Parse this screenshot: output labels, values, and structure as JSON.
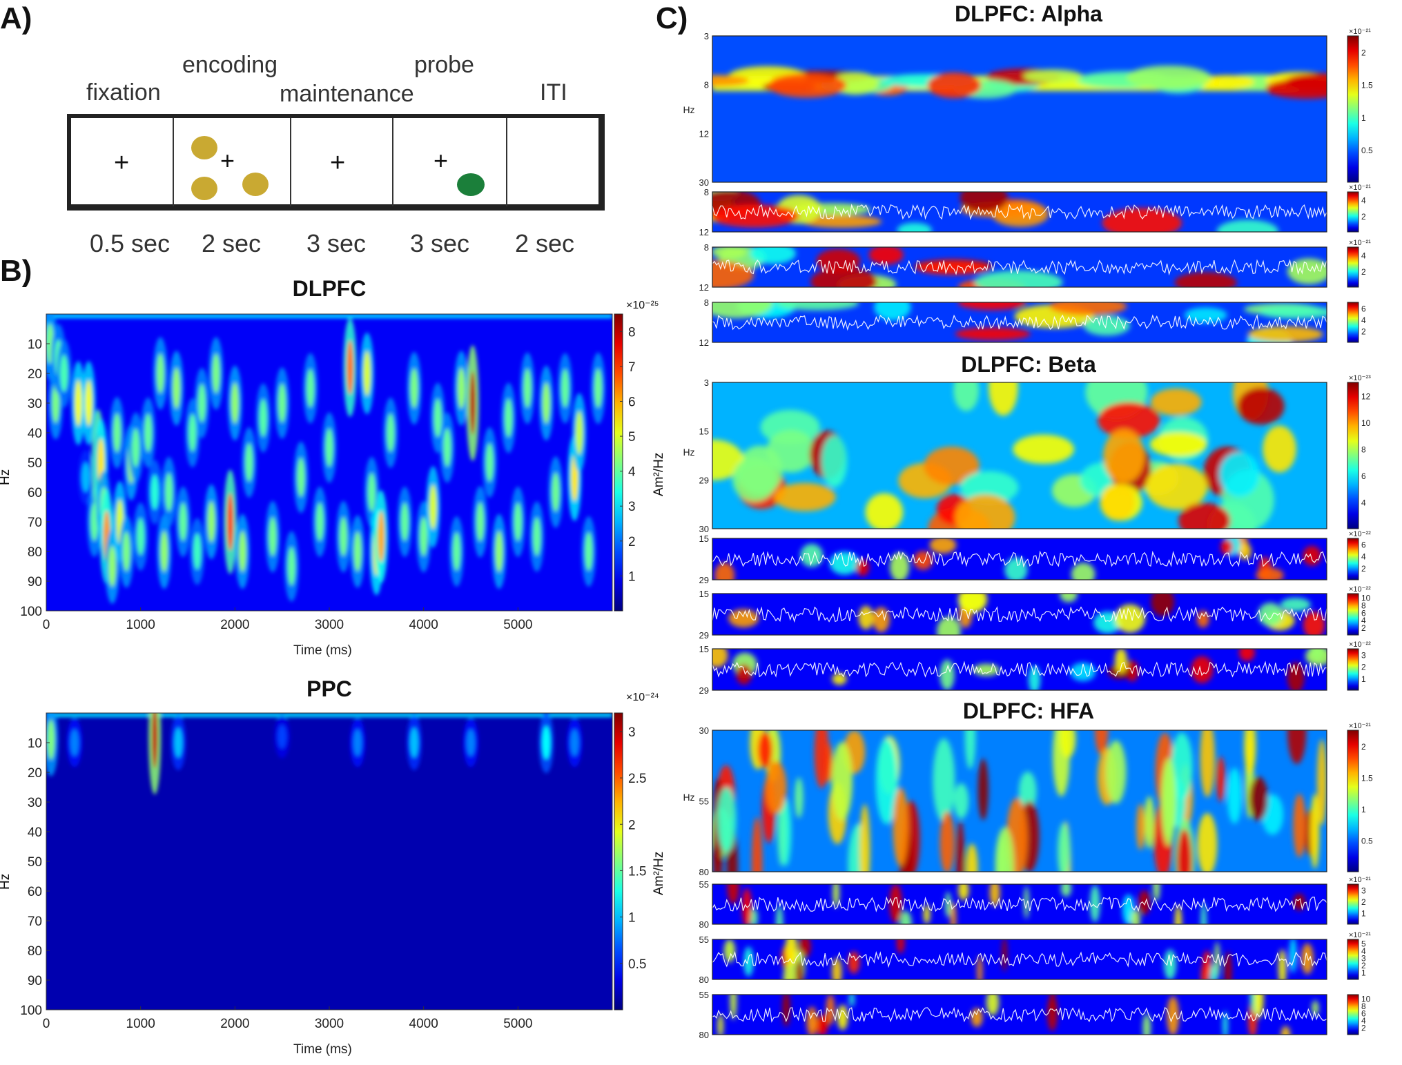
{
  "panel_labels": {
    "a": "A)",
    "b": "B)",
    "c": "C)"
  },
  "task": {
    "phases": [
      {
        "name": "fixation",
        "duration": "0.5 sec",
        "stimulus": "cross"
      },
      {
        "name": "encoding",
        "duration": "2 sec",
        "stimulus": "cross-three-yellow-dots"
      },
      {
        "name": "maintenance",
        "duration": "3 sec",
        "stimulus": "cross"
      },
      {
        "name": "probe",
        "duration": "3 sec",
        "stimulus": "cross-green-dot"
      },
      {
        "name": "ITI",
        "duration": "2 sec",
        "stimulus": "blank"
      }
    ],
    "cross": "+",
    "colors": {
      "memory_dot": "#c9a932",
      "probe_dot": "#1b7f3a"
    }
  },
  "colormap": [
    "#00007f",
    "#0000ff",
    "#007fff",
    "#00ffff",
    "#7fff7f",
    "#ffff00",
    "#ff7f00",
    "#ff0000",
    "#7f0000"
  ],
  "chart_data": [
    {
      "type": "heatmap",
      "title": "DLPFC",
      "xlabel": "Time (ms)",
      "ylabel": "Hz",
      "xlim": [
        0,
        6000
      ],
      "xticks": [
        "0",
        "1000",
        "2000",
        "3000",
        "4000",
        "5000"
      ],
      "ylim": [
        0,
        100
      ],
      "yticks": [
        "10",
        "20",
        "30",
        "40",
        "50",
        "60",
        "70",
        "80",
        "90",
        "100"
      ],
      "colorbar": {
        "label": "Am²/Hz",
        "exponent": "×10⁻²⁵",
        "ticks": [
          "1",
          "2",
          "3",
          "4",
          "5",
          "6",
          "7",
          "8"
        ],
        "range": [
          0,
          8.5
        ]
      },
      "bursts": [
        [
          30,
          8,
          3.4
        ],
        [
          40,
          10,
          4.2
        ],
        [
          100,
          30,
          4.2
        ],
        [
          130,
          15,
          3.9
        ],
        [
          190,
          20,
          3.8
        ],
        [
          340,
          30,
          5.2
        ],
        [
          420,
          55,
          2.6
        ],
        [
          450,
          30,
          5.2
        ],
        [
          510,
          70,
          4.0
        ],
        [
          550,
          50,
          7.2
        ],
        [
          580,
          50,
          5.5
        ],
        [
          610,
          65,
          4.2
        ],
        [
          640,
          75,
          6.2
        ],
        [
          700,
          85,
          4.4
        ],
        [
          750,
          40,
          4.1
        ],
        [
          780,
          70,
          5.0
        ],
        [
          850,
          80,
          4.2
        ],
        [
          900,
          50,
          4.5
        ],
        [
          950,
          45,
          4.0
        ],
        [
          1000,
          75,
          3.8
        ],
        [
          1080,
          40,
          4.0
        ],
        [
          1150,
          60,
          3.5
        ],
        [
          1210,
          20,
          4.2
        ],
        [
          1250,
          80,
          4.4
        ],
        [
          1300,
          60,
          4.0
        ],
        [
          1380,
          25,
          4.4
        ],
        [
          1450,
          70,
          4.0
        ],
        [
          1550,
          40,
          3.9
        ],
        [
          1600,
          80,
          3.7
        ],
        [
          1650,
          30,
          4.0
        ],
        [
          1750,
          70,
          4.4
        ],
        [
          1800,
          20,
          4.2
        ],
        [
          1950,
          70,
          7.0
        ],
        [
          2000,
          30,
          4.4
        ],
        [
          2080,
          80,
          4.4
        ],
        [
          2150,
          50,
          4.0
        ],
        [
          2300,
          35,
          3.9
        ],
        [
          2400,
          75,
          4.1
        ],
        [
          2500,
          30,
          4.1
        ],
        [
          2600,
          85,
          4.0
        ],
        [
          2700,
          55,
          4.1
        ],
        [
          2800,
          25,
          4.0
        ],
        [
          2900,
          70,
          4.0
        ],
        [
          3000,
          45,
          4.0
        ],
        [
          3150,
          75,
          4.1
        ],
        [
          3220,
          18,
          6.5
        ],
        [
          3300,
          80,
          4.2
        ],
        [
          3400,
          20,
          5.0
        ],
        [
          3450,
          60,
          4.0
        ],
        [
          3500,
          80,
          5.5
        ],
        [
          3550,
          75,
          6.0
        ],
        [
          3650,
          40,
          4.0
        ],
        [
          3800,
          70,
          4.0
        ],
        [
          3900,
          25,
          4.2
        ],
        [
          4000,
          75,
          4.1
        ],
        [
          4100,
          65,
          5.0
        ],
        [
          4150,
          35,
          4.0
        ],
        [
          4250,
          45,
          4.0
        ],
        [
          4350,
          80,
          4.0
        ],
        [
          4400,
          25,
          4.4
        ],
        [
          4520,
          30,
          8.0
        ],
        [
          4600,
          70,
          4.1
        ],
        [
          4700,
          50,
          4.0
        ],
        [
          4800,
          80,
          4.4
        ],
        [
          4900,
          35,
          4.0
        ],
        [
          5000,
          70,
          4.0
        ],
        [
          5100,
          25,
          4.1
        ],
        [
          5200,
          75,
          4.0
        ],
        [
          5300,
          30,
          4.4
        ],
        [
          5400,
          60,
          4.1
        ],
        [
          5500,
          25,
          4.0
        ],
        [
          5600,
          55,
          5.5
        ],
        [
          5650,
          40,
          4.8
        ],
        [
          5750,
          80,
          4.0
        ],
        [
          5850,
          25,
          4.1
        ]
      ],
      "baseline": 1.0
    },
    {
      "type": "heatmap",
      "title": "PPC",
      "xlabel": "Time (ms)",
      "ylabel": "Hz",
      "xlim": [
        0,
        6000
      ],
      "xticks": [
        "0",
        "1000",
        "2000",
        "3000",
        "4000",
        "5000"
      ],
      "ylim": [
        0,
        100
      ],
      "yticks": [
        "10",
        "20",
        "30",
        "40",
        "50",
        "60",
        "70",
        "80",
        "90",
        "100"
      ],
      "colorbar": {
        "label": "Am²/Hz",
        "exponent": "×10⁻²⁴",
        "ticks": [
          "0.5",
          "1",
          "1.5",
          "2",
          "2.5",
          "3"
        ],
        "range": [
          0,
          3.2
        ]
      },
      "bursts": [
        [
          50,
          9,
          1.6
        ],
        [
          300,
          10,
          0.8
        ],
        [
          1150,
          8,
          3.0
        ],
        [
          1400,
          10,
          1.0
        ],
        [
          2500,
          8,
          0.6
        ],
        [
          3300,
          10,
          0.8
        ],
        [
          3900,
          10,
          1.0
        ],
        [
          4500,
          10,
          0.8
        ],
        [
          5300,
          10,
          1.2
        ],
        [
          5600,
          10,
          0.8
        ]
      ],
      "baseline": 0.15
    },
    {
      "type": "heatmap",
      "title": "DLPFC: Alpha",
      "ylabel": "Hz",
      "yticks": [
        "3",
        "8",
        "12",
        "30"
      ],
      "colorbar": {
        "label": "Am²/Hz",
        "exponent": "×10⁻²¹",
        "ticks": [
          "0.5",
          "1",
          "1.5",
          "2"
        ]
      },
      "band_center_hz": 12,
      "trials": [
        {
          "yticks": [
            "8",
            "12"
          ],
          "colorbar_ticks": [
            "2",
            "4"
          ],
          "exponent": "×10⁻²¹"
        },
        {
          "yticks": [
            "8",
            "12"
          ],
          "colorbar_ticks": [
            "2",
            "4"
          ],
          "exponent": "×10⁻²¹"
        },
        {
          "yticks": [
            "8",
            "12"
          ],
          "colorbar_ticks": [
            "2",
            "4",
            "6"
          ],
          "exponent": ""
        }
      ]
    },
    {
      "type": "heatmap",
      "title": "DLPFC: Beta",
      "ylabel": "Hz",
      "yticks": [
        "3",
        "15",
        "29",
        "30"
      ],
      "colorbar": {
        "label": "Am²/Hz",
        "exponent": "×10⁻²³",
        "ticks": [
          "4",
          "6",
          "8",
          "10",
          "12"
        ]
      },
      "trials": [
        {
          "yticks": [
            "15",
            "29"
          ],
          "colorbar_ticks": [
            "2",
            "4",
            "6"
          ],
          "exponent": "×10⁻²²"
        },
        {
          "yticks": [
            "15",
            "29"
          ],
          "colorbar_ticks": [
            "2",
            "4",
            "6",
            "8",
            "10"
          ],
          "exponent": "×10⁻²²"
        },
        {
          "yticks": [
            "15",
            "29"
          ],
          "colorbar_ticks": [
            "1",
            "2",
            "3"
          ],
          "exponent": "×10⁻²²"
        }
      ]
    },
    {
      "type": "heatmap",
      "title": "DLPFC: HFA",
      "ylabel": "Hz",
      "yticks": [
        "30",
        "55",
        "80"
      ],
      "colorbar": {
        "label": "Am²/Hz",
        "exponent": "×10⁻²¹",
        "ticks": [
          "0.5",
          "1",
          "1.5",
          "2"
        ]
      },
      "trials": [
        {
          "yticks": [
            "55",
            "80"
          ],
          "colorbar_ticks": [
            "1",
            "2",
            "3"
          ],
          "exponent": "×10⁻²¹"
        },
        {
          "yticks": [
            "55",
            "80"
          ],
          "colorbar_ticks": [
            "1",
            "2",
            "3",
            "4",
            "5"
          ],
          "exponent": "×10⁻²¹"
        },
        {
          "yticks": [
            "55",
            "80"
          ],
          "colorbar_ticks": [
            "2",
            "4",
            "6",
            "8",
            "10"
          ],
          "exponent": ""
        }
      ]
    }
  ]
}
